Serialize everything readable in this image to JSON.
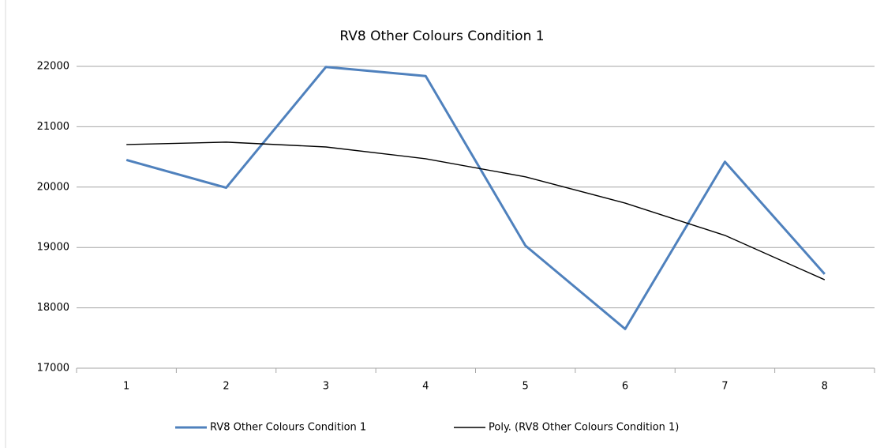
{
  "chart_data": {
    "type": "line",
    "title": "RV8 Other Colours  Condition  1",
    "categories": [
      "1",
      "2",
      "3",
      "4",
      "5",
      "6",
      "7",
      "8"
    ],
    "series": [
      {
        "name": "RV8 Other Colours Condition 1",
        "color": "#4f81bd",
        "values": [
          20450,
          19990,
          21990,
          21840,
          19030,
          17650,
          20420,
          18560
        ]
      },
      {
        "name": "Poly. (RV8 Other Colours Condition 1)",
        "color": "#000000",
        "values": [
          20705,
          20745,
          20665,
          20470,
          20170,
          19735,
          19200,
          18465
        ]
      }
    ],
    "ylim": [
      17000,
      22000
    ],
    "yticks": [
      17000,
      18000,
      19000,
      20000,
      21000,
      22000
    ],
    "grid": true,
    "legend": "bottom"
  }
}
